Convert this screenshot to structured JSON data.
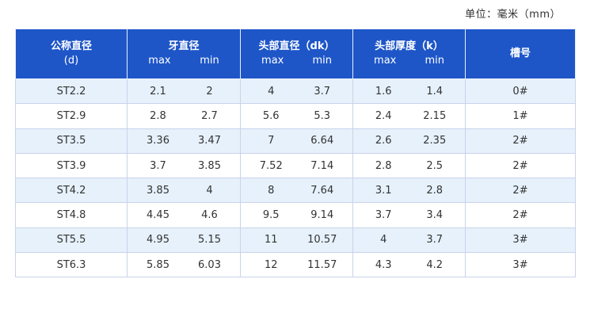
{
  "unit_note": "单位：毫米（mm）",
  "headers": {
    "nominal": {
      "title": "公称直径",
      "sub": "(d)"
    },
    "thread": {
      "title": "牙直径",
      "max": "max",
      "min": "min"
    },
    "head_dia": {
      "title": "头部直径（dk）",
      "max": "max",
      "min": "min"
    },
    "head_thick": {
      "title": "头部厚度（k）",
      "max": "max",
      "min": "min"
    },
    "slot": {
      "title": "槽号"
    }
  },
  "rows": [
    {
      "name": "ST2.2",
      "d_max": "2.1",
      "d_min": "2",
      "dk_max": "4",
      "dk_min": "3.7",
      "k_max": "1.6",
      "k_min": "1.4",
      "slot": "0#"
    },
    {
      "name": "ST2.9",
      "d_max": "2.8",
      "d_min": "2.7",
      "dk_max": "5.6",
      "dk_min": "5.3",
      "k_max": "2.4",
      "k_min": "2.15",
      "slot": "1#"
    },
    {
      "name": "ST3.5",
      "d_max": "3.36",
      "d_min": "3.47",
      "dk_max": "7",
      "dk_min": "6.64",
      "k_max": "2.6",
      "k_min": "2.35",
      "slot": "2#"
    },
    {
      "name": "ST3.9",
      "d_max": "3.7",
      "d_min": "3.85",
      "dk_max": "7.52",
      "dk_min": "7.14",
      "k_max": "2.8",
      "k_min": "2.5",
      "slot": "2#"
    },
    {
      "name": "ST4.2",
      "d_max": "3.85",
      "d_min": "4",
      "dk_max": "8",
      "dk_min": "7.64",
      "k_max": "3.1",
      "k_min": "2.8",
      "slot": "2#"
    },
    {
      "name": "ST4.8",
      "d_max": "4.45",
      "d_min": "4.6",
      "dk_max": "9.5",
      "dk_min": "9.14",
      "k_max": "3.7",
      "k_min": "3.4",
      "slot": "2#"
    },
    {
      "name": "ST5.5",
      "d_max": "4.95",
      "d_min": "5.15",
      "dk_max": "11",
      "dk_min": "10.57",
      "k_max": "4",
      "k_min": "3.7",
      "slot": "3#"
    },
    {
      "name": "ST6.3",
      "d_max": "5.85",
      "d_min": "6.03",
      "dk_max": "12",
      "dk_min": "11.57",
      "k_max": "4.3",
      "k_min": "4.2",
      "slot": "3#"
    }
  ]
}
